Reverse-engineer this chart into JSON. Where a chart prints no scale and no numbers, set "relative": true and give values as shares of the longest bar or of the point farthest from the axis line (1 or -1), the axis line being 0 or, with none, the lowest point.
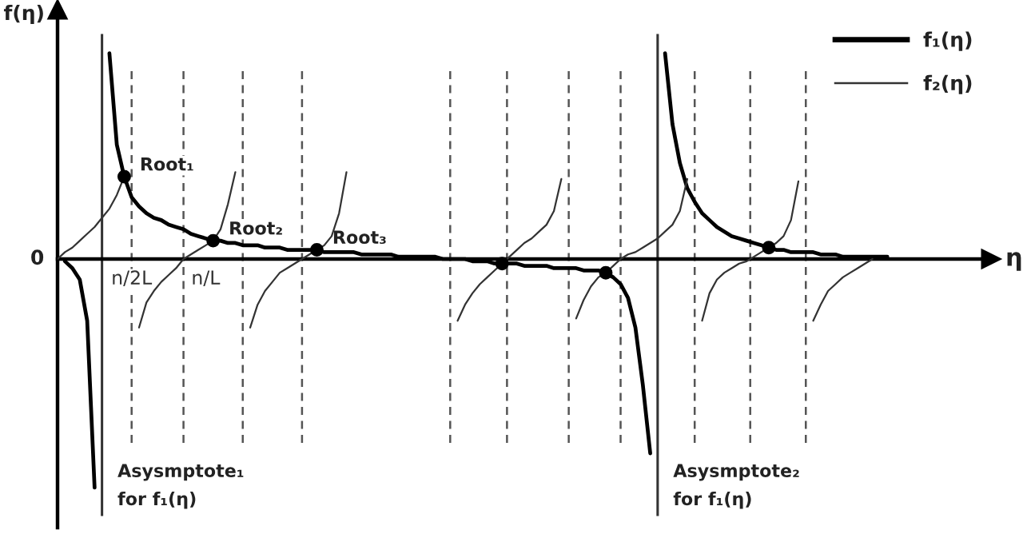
{
  "chart_data": {
    "type": "line",
    "relative": true,
    "xlabel": "η",
    "ylabel": "f(η)",
    "tick_labels": "x",
    "legend": "top right",
    "categories": [
      null,
      null,
      null,
      null,
      null,
      null,
      null,
      null,
      null,
      null,
      "n/2L",
      null,
      null,
      null,
      null,
      null,
      null,
      null,
      null,
      null,
      "n/L",
      null,
      null,
      null,
      null,
      null,
      null,
      null,
      null,
      null,
      null,
      null,
      null,
      null,
      null,
      null,
      null,
      null,
      null,
      null,
      null,
      null,
      null,
      null,
      null,
      null,
      null,
      null,
      null,
      null,
      null,
      null,
      null,
      null,
      null,
      null,
      null,
      null,
      null,
      null,
      null,
      null,
      null,
      null,
      null,
      null,
      null,
      null,
      null,
      null,
      null,
      null,
      null,
      null,
      null,
      null,
      null,
      null,
      null,
      null,
      null,
      null,
      null,
      null,
      null,
      null,
      null,
      null,
      null,
      null,
      null,
      null,
      null,
      null,
      null,
      null,
      null,
      null,
      null,
      null,
      null,
      null,
      null,
      null,
      null,
      null,
      null,
      null,
      null,
      null,
      null,
      null,
      null,
      null,
      null,
      null,
      null,
      null,
      null,
      null,
      null,
      null,
      null,
      null,
      null,
      null,
      null
    ],
    "series": [
      {
        "name": "f₁(η)",
        "color": "#000000",
        "values": [
          null,
          -0.01,
          -0.04,
          -0.09,
          -0.27,
          -1.0,
          null,
          0.9,
          0.5,
          0.36,
          0.27,
          0.23,
          0.2,
          0.18,
          0.17,
          0.15,
          0.14,
          0.13,
          0.11,
          0.1,
          0.09,
          0.08,
          0.08,
          0.07,
          0.07,
          0.06,
          0.06,
          0.06,
          0.05,
          0.05,
          0.05,
          0.04,
          0.04,
          0.04,
          0.04,
          0.04,
          0.03,
          0.03,
          0.03,
          0.03,
          0.03,
          0.02,
          0.02,
          0.02,
          0.02,
          0.02,
          0.01,
          0.01,
          0.01,
          0.01,
          0.01,
          0.01,
          0,
          0,
          0,
          0,
          -0.01,
          -0.01,
          -0.01,
          -0.02,
          -0.02,
          -0.02,
          -0.02,
          -0.03,
          -0.03,
          -0.03,
          -0.03,
          -0.04,
          -0.04,
          -0.04,
          -0.04,
          -0.05,
          -0.05,
          -0.05,
          -0.06,
          -0.08,
          -0.11,
          -0.17,
          -0.3,
          -0.55,
          -0.85,
          null,
          0.9,
          0.59,
          0.42,
          0.31,
          0.25,
          0.2,
          0.17,
          0.14,
          0.12,
          0.1,
          0.09,
          0.08,
          0.07,
          0.06,
          0.05,
          0.04,
          0.04,
          0.03,
          0.03,
          0.03,
          0.03,
          0.02,
          0.02,
          0.02,
          0.01,
          0.01,
          0.01,
          0.01,
          0.01,
          0.01,
          0.01,
          null,
          null,
          null,
          null,
          null,
          null,
          null,
          null,
          null,
          null,
          null,
          null,
          null,
          null
        ]
      },
      {
        "name": "f₂(η)",
        "color": "#333333",
        "values": [
          0,
          0.03,
          0.05,
          0.08,
          0.11,
          0.14,
          0.18,
          0.22,
          0.28,
          0.36,
          null,
          -0.3,
          -0.19,
          -0.14,
          -0.1,
          -0.07,
          -0.04,
          0,
          0.02,
          0.04,
          0.06,
          0.08,
          0.13,
          0.24,
          0.38,
          null,
          -0.3,
          -0.2,
          -0.14,
          -0.1,
          -0.06,
          -0.04,
          -0.02,
          0,
          0.02,
          0.04,
          0.06,
          0.1,
          0.2,
          0.38,
          null,
          null,
          null,
          null,
          null,
          null,
          null,
          null,
          null,
          null,
          null,
          null,
          null,
          null,
          -0.27,
          -0.2,
          -0.15,
          -0.11,
          -0.08,
          -0.05,
          -0.02,
          0.01,
          0.04,
          0.07,
          0.09,
          0.12,
          0.15,
          0.21,
          0.35,
          null,
          -0.26,
          -0.18,
          -0.12,
          -0.08,
          -0.06,
          -0.03,
          0,
          0.02,
          0.03,
          0.05,
          0.07,
          0.09,
          0.12,
          0.15,
          0.21,
          0.35,
          null,
          -0.27,
          -0.15,
          -0.09,
          -0.06,
          -0.04,
          -0.02,
          -0.01,
          0.01,
          0.03,
          0.05,
          0.07,
          0.1,
          0.17,
          0.34,
          null,
          -0.27,
          -0.2,
          -0.14,
          -0.11,
          -0.08,
          -0.06,
          -0.04,
          -0.02,
          0,
          null,
          null,
          null,
          null,
          null,
          null,
          null,
          null,
          null,
          null,
          null,
          null,
          null,
          null,
          null,
          null
        ]
      },
      {
        "type": "scatter",
        "color": "#000000",
        "marker": "circle",
        "values": [
          null,
          null,
          null,
          null,
          null,
          null,
          null,
          null,
          null,
          0.36,
          null,
          null,
          null,
          null,
          null,
          null,
          null,
          null,
          null,
          null,
          null,
          0.08,
          null,
          null,
          null,
          null,
          null,
          null,
          null,
          null,
          null,
          null,
          null,
          null,
          null,
          0.04,
          null,
          null,
          null,
          null,
          null,
          null,
          null,
          null,
          null,
          null,
          null,
          null,
          null,
          null,
          null,
          null,
          null,
          null,
          null,
          null,
          null,
          null,
          null,
          null,
          -0.02,
          null,
          null,
          null,
          null,
          null,
          null,
          null,
          null,
          null,
          null,
          null,
          null,
          null,
          -0.06,
          null,
          null,
          null,
          null,
          null,
          null,
          null,
          null,
          null,
          null,
          null,
          null,
          null,
          null,
          null,
          null,
          null,
          null,
          null,
          null,
          null,
          0.05,
          null,
          null,
          null,
          null,
          null,
          null,
          null,
          null,
          null,
          null,
          null,
          null,
          null,
          null,
          null,
          null,
          null,
          null,
          null,
          null,
          null,
          null,
          null,
          null,
          null,
          null,
          null,
          null,
          null,
          null
        ]
      }
    ],
    "annotations": [
      "0",
      "Asysmptote₁\nfor f₁(η)",
      "Asysmptote₂\nfor f₁(η)",
      "Root₁",
      "Root₂",
      "Root₃"
    ]
  }
}
